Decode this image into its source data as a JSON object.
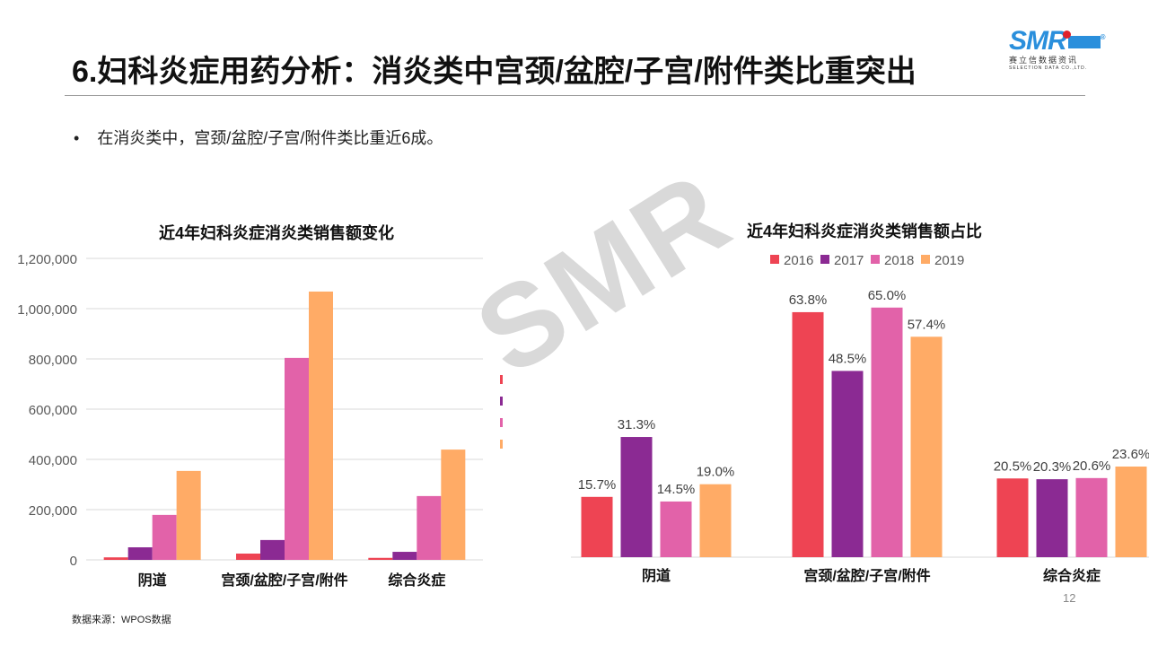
{
  "header": {
    "title": "6.妇科炎症用药分析：消炎类中宫颈/盆腔/子宫/附件类比重突出",
    "logo_text": "SMR",
    "logo_cn": "赛立信数据资讯",
    "logo_en": "SELECTION DATA CO.,LTD.",
    "logo_reg": "®"
  },
  "bullet": {
    "dot": "•",
    "text": "在消炎类中，宫颈/盆腔/子宫/附件类比重近6成。"
  },
  "watermark": "SMR",
  "source": "数据来源：WPOS数据",
  "page_number": "12",
  "colors": {
    "2016": "#ee4453",
    "2017": "#8b2a93",
    "2018": "#e262a9",
    "2019": "#ffab66"
  },
  "chart_data": [
    {
      "type": "bar",
      "title": "近4年妇科炎症消炎类销售额变化",
      "categories": [
        "阴道",
        "宫颈/盆腔/子宫/附件",
        "综合炎症"
      ],
      "series": [
        {
          "name": "2016",
          "values": [
            10000,
            25000,
            8000
          ]
        },
        {
          "name": "2017",
          "values": [
            50000,
            79000,
            32000
          ]
        },
        {
          "name": "2018",
          "values": [
            179000,
            804000,
            254000
          ]
        },
        {
          "name": "2019",
          "values": [
            354000,
            1068000,
            439000
          ]
        }
      ],
      "ylim": [
        0,
        1200000
      ],
      "yticks": [
        "0",
        "200,000",
        "400,000",
        "600,000",
        "800,000",
        "1,000,000",
        "1,200,000"
      ],
      "grid": true,
      "legend": "right"
    },
    {
      "type": "bar",
      "title": "近4年妇科炎症消炎类销售额占比",
      "categories": [
        "阴道",
        "宫颈/盆腔/子宫/附件",
        "综合炎症"
      ],
      "series": [
        {
          "name": "2016",
          "values": [
            15.7,
            63.8,
            20.5
          ]
        },
        {
          "name": "2017",
          "values": [
            31.3,
            48.5,
            20.3
          ]
        },
        {
          "name": "2018",
          "values": [
            14.5,
            65.0,
            20.6
          ]
        },
        {
          "name": "2019",
          "values": [
            19.0,
            57.4,
            23.6
          ]
        }
      ],
      "labels": [
        [
          "15.7%",
          "63.8%",
          "20.5%"
        ],
        [
          "31.3%",
          "48.5%",
          "20.3%"
        ],
        [
          "14.5%",
          "65.0%",
          "20.6%"
        ],
        [
          "19.0%",
          "57.4%",
          "23.6%"
        ]
      ],
      "legend": "top",
      "grid": false
    }
  ]
}
